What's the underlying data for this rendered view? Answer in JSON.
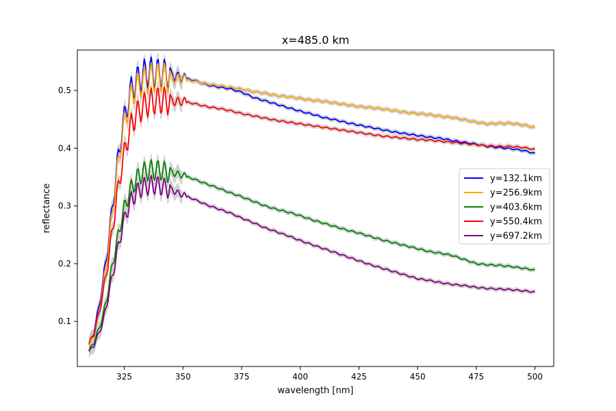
{
  "chart_data": {
    "type": "line",
    "title": "x=485.0 km",
    "xlabel": "wavelength [nm]",
    "ylabel": "reflectance",
    "xlim": [
      305,
      508
    ],
    "ylim": [
      0.022,
      0.57
    ],
    "xticks": [
      325,
      350,
      375,
      400,
      425,
      450,
      475,
      500
    ],
    "yticks": [
      0.1,
      0.2,
      0.3,
      0.4,
      0.5
    ],
    "grid": false,
    "legend_position": "center-right",
    "uncertainty_band_color": "#c8c8c8",
    "series": [
      {
        "name": "y=132.1km",
        "color": "#0000ff",
        "points": [
          [
            310,
            0.06
          ],
          [
            312,
            0.08
          ],
          [
            314,
            0.12
          ],
          [
            316,
            0.17
          ],
          [
            318,
            0.23
          ],
          [
            320,
            0.3
          ],
          [
            322,
            0.37
          ],
          [
            324,
            0.43
          ],
          [
            326,
            0.47
          ],
          [
            328,
            0.5
          ],
          [
            330,
            0.515
          ],
          [
            332,
            0.523
          ],
          [
            334,
            0.53
          ],
          [
            336,
            0.532
          ],
          [
            338,
            0.53
          ],
          [
            340,
            0.53
          ],
          [
            343,
            0.528
          ],
          [
            346,
            0.525
          ],
          [
            350,
            0.522
          ],
          [
            355,
            0.517
          ],
          [
            360,
            0.51
          ],
          [
            365,
            0.506
          ],
          [
            370,
            0.503
          ],
          [
            375,
            0.497
          ],
          [
            380,
            0.488
          ],
          [
            385,
            0.482
          ],
          [
            390,
            0.476
          ],
          [
            395,
            0.47
          ],
          [
            400,
            0.464
          ],
          [
            405,
            0.459
          ],
          [
            410,
            0.453
          ],
          [
            415,
            0.449
          ],
          [
            420,
            0.444
          ],
          [
            425,
            0.44
          ],
          [
            430,
            0.436
          ],
          [
            435,
            0.432
          ],
          [
            440,
            0.428
          ],
          [
            445,
            0.425
          ],
          [
            450,
            0.422
          ],
          [
            455,
            0.419
          ],
          [
            460,
            0.417
          ],
          [
            465,
            0.413
          ],
          [
            470,
            0.41
          ],
          [
            475,
            0.407
          ],
          [
            480,
            0.403
          ],
          [
            485,
            0.401
          ],
          [
            490,
            0.399
          ],
          [
            495,
            0.396
          ],
          [
            500,
            0.391
          ]
        ]
      },
      {
        "name": "y=256.9km",
        "color": "#ffa500",
        "points": [
          [
            310,
            0.058
          ],
          [
            312,
            0.075
          ],
          [
            314,
            0.11
          ],
          [
            316,
            0.16
          ],
          [
            318,
            0.22
          ],
          [
            320,
            0.29
          ],
          [
            322,
            0.36
          ],
          [
            324,
            0.42
          ],
          [
            326,
            0.46
          ],
          [
            328,
            0.49
          ],
          [
            330,
            0.505
          ],
          [
            332,
            0.512
          ],
          [
            334,
            0.518
          ],
          [
            336,
            0.522
          ],
          [
            338,
            0.523
          ],
          [
            340,
            0.523
          ],
          [
            343,
            0.522
          ],
          [
            346,
            0.521
          ],
          [
            350,
            0.52
          ],
          [
            355,
            0.516
          ],
          [
            360,
            0.511
          ],
          [
            365,
            0.508
          ],
          [
            370,
            0.505
          ],
          [
            375,
            0.502
          ],
          [
            380,
            0.498
          ],
          [
            385,
            0.495
          ],
          [
            390,
            0.491
          ],
          [
            395,
            0.489
          ],
          [
            400,
            0.486
          ],
          [
            405,
            0.483
          ],
          [
            410,
            0.481
          ],
          [
            415,
            0.478
          ],
          [
            420,
            0.475
          ],
          [
            425,
            0.472
          ],
          [
            430,
            0.47
          ],
          [
            435,
            0.468
          ],
          [
            440,
            0.465
          ],
          [
            445,
            0.462
          ],
          [
            450,
            0.46
          ],
          [
            455,
            0.458
          ],
          [
            460,
            0.455
          ],
          [
            465,
            0.453
          ],
          [
            470,
            0.449
          ],
          [
            475,
            0.445
          ],
          [
            480,
            0.442
          ],
          [
            485,
            0.443
          ],
          [
            490,
            0.443
          ],
          [
            495,
            0.44
          ],
          [
            500,
            0.436
          ]
        ]
      },
      {
        "name": "y=403.6km",
        "color": "#008000",
        "points": [
          [
            310,
            0.05
          ],
          [
            312,
            0.063
          ],
          [
            314,
            0.085
          ],
          [
            316,
            0.11
          ],
          [
            318,
            0.15
          ],
          [
            320,
            0.2
          ],
          [
            322,
            0.24
          ],
          [
            324,
            0.28
          ],
          [
            326,
            0.31
          ],
          [
            328,
            0.33
          ],
          [
            330,
            0.345
          ],
          [
            332,
            0.355
          ],
          [
            334,
            0.36
          ],
          [
            336,
            0.362
          ],
          [
            338,
            0.362
          ],
          [
            340,
            0.362
          ],
          [
            343,
            0.359
          ],
          [
            346,
            0.357
          ],
          [
            350,
            0.353
          ],
          [
            355,
            0.346
          ],
          [
            360,
            0.338
          ],
          [
            365,
            0.331
          ],
          [
            370,
            0.323
          ],
          [
            375,
            0.316
          ],
          [
            380,
            0.308
          ],
          [
            385,
            0.3
          ],
          [
            390,
            0.294
          ],
          [
            395,
            0.289
          ],
          [
            400,
            0.283
          ],
          [
            405,
            0.276
          ],
          [
            410,
            0.27
          ],
          [
            415,
            0.264
          ],
          [
            420,
            0.258
          ],
          [
            425,
            0.253
          ],
          [
            430,
            0.247
          ],
          [
            435,
            0.241
          ],
          [
            440,
            0.236
          ],
          [
            445,
            0.231
          ],
          [
            450,
            0.226
          ],
          [
            455,
            0.221
          ],
          [
            460,
            0.218
          ],
          [
            465,
            0.214
          ],
          [
            470,
            0.207
          ],
          [
            475,
            0.2
          ],
          [
            480,
            0.198
          ],
          [
            485,
            0.197
          ],
          [
            490,
            0.195
          ],
          [
            495,
            0.192
          ],
          [
            500,
            0.189
          ]
        ]
      },
      {
        "name": "y=550.4km",
        "color": "#ff0000",
        "points": [
          [
            310,
            0.062
          ],
          [
            312,
            0.078
          ],
          [
            314,
            0.11
          ],
          [
            316,
            0.15
          ],
          [
            318,
            0.2
          ],
          [
            320,
            0.26
          ],
          [
            322,
            0.32
          ],
          [
            324,
            0.37
          ],
          [
            326,
            0.41
          ],
          [
            328,
            0.44
          ],
          [
            330,
            0.458
          ],
          [
            332,
            0.468
          ],
          [
            334,
            0.475
          ],
          [
            336,
            0.48
          ],
          [
            338,
            0.482
          ],
          [
            340,
            0.483
          ],
          [
            343,
            0.482
          ],
          [
            346,
            0.481
          ],
          [
            350,
            0.481
          ],
          [
            355,
            0.477
          ],
          [
            360,
            0.472
          ],
          [
            365,
            0.469
          ],
          [
            370,
            0.465
          ],
          [
            375,
            0.46
          ],
          [
            380,
            0.456
          ],
          [
            385,
            0.452
          ],
          [
            390,
            0.448
          ],
          [
            395,
            0.445
          ],
          [
            400,
            0.442
          ],
          [
            405,
            0.439
          ],
          [
            410,
            0.436
          ],
          [
            415,
            0.433
          ],
          [
            420,
            0.43
          ],
          [
            425,
            0.427
          ],
          [
            430,
            0.424
          ],
          [
            435,
            0.421
          ],
          [
            440,
            0.419
          ],
          [
            445,
            0.417
          ],
          [
            450,
            0.415
          ],
          [
            455,
            0.414
          ],
          [
            460,
            0.412
          ],
          [
            465,
            0.41
          ],
          [
            470,
            0.408
          ],
          [
            475,
            0.406
          ],
          [
            480,
            0.404
          ],
          [
            485,
            0.403
          ],
          [
            490,
            0.403
          ],
          [
            495,
            0.401
          ],
          [
            500,
            0.398
          ]
        ]
      },
      {
        "name": "y=697.2km",
        "color": "#800080",
        "points": [
          [
            310,
            0.048
          ],
          [
            312,
            0.058
          ],
          [
            314,
            0.078
          ],
          [
            316,
            0.1
          ],
          [
            318,
            0.14
          ],
          [
            320,
            0.18
          ],
          [
            322,
            0.22
          ],
          [
            324,
            0.26
          ],
          [
            326,
            0.29
          ],
          [
            328,
            0.31
          ],
          [
            330,
            0.322
          ],
          [
            332,
            0.33
          ],
          [
            334,
            0.334
          ],
          [
            336,
            0.336
          ],
          [
            338,
            0.336
          ],
          [
            340,
            0.335
          ],
          [
            343,
            0.331
          ],
          [
            346,
            0.326
          ],
          [
            350,
            0.319
          ],
          [
            355,
            0.311
          ],
          [
            360,
            0.302
          ],
          [
            365,
            0.295
          ],
          [
            370,
            0.288
          ],
          [
            375,
            0.279
          ],
          [
            380,
            0.271
          ],
          [
            385,
            0.262
          ],
          [
            390,
            0.255
          ],
          [
            395,
            0.248
          ],
          [
            400,
            0.24
          ],
          [
            405,
            0.233
          ],
          [
            410,
            0.226
          ],
          [
            415,
            0.219
          ],
          [
            420,
            0.212
          ],
          [
            425,
            0.205
          ],
          [
            430,
            0.198
          ],
          [
            435,
            0.192
          ],
          [
            440,
            0.186
          ],
          [
            445,
            0.18
          ],
          [
            450,
            0.174
          ],
          [
            455,
            0.171
          ],
          [
            460,
            0.167
          ],
          [
            465,
            0.164
          ],
          [
            470,
            0.162
          ],
          [
            475,
            0.159
          ],
          [
            480,
            0.157
          ],
          [
            485,
            0.156
          ],
          [
            490,
            0.155
          ],
          [
            495,
            0.153
          ],
          [
            500,
            0.151
          ]
        ]
      }
    ]
  }
}
